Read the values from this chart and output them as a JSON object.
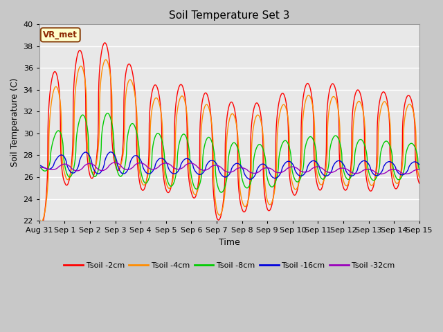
{
  "title": "Soil Temperature Set 3",
  "xlabel": "Time",
  "ylabel": "Soil Temperature (C)",
  "ylim": [
    22,
    40
  ],
  "annotation": "VR_met",
  "series": [
    {
      "label": "Tsoil -2cm",
      "color": "#ff0000"
    },
    {
      "label": "Tsoil -4cm",
      "color": "#ff8c00"
    },
    {
      "label": "Tsoil -8cm",
      "color": "#00cc00"
    },
    {
      "label": "Tsoil -16cm",
      "color": "#0000dd"
    },
    {
      "label": "Tsoil -32cm",
      "color": "#9900bb"
    }
  ],
  "xtick_labels": [
    "Aug 31",
    "Sep 1",
    "Sep 2",
    "Sep 3",
    "Sep 4",
    "Sep 5",
    "Sep 6",
    "Sep 7",
    "Sep 8",
    "Sep 9",
    "Sep 10",
    "Sep 11",
    "Sep 12",
    "Sep 13",
    "Sep 14",
    "Sep 15"
  ],
  "xtick_positions": [
    0,
    1,
    2,
    3,
    4,
    5,
    6,
    7,
    8,
    9,
    10,
    11,
    12,
    13,
    14,
    15
  ]
}
